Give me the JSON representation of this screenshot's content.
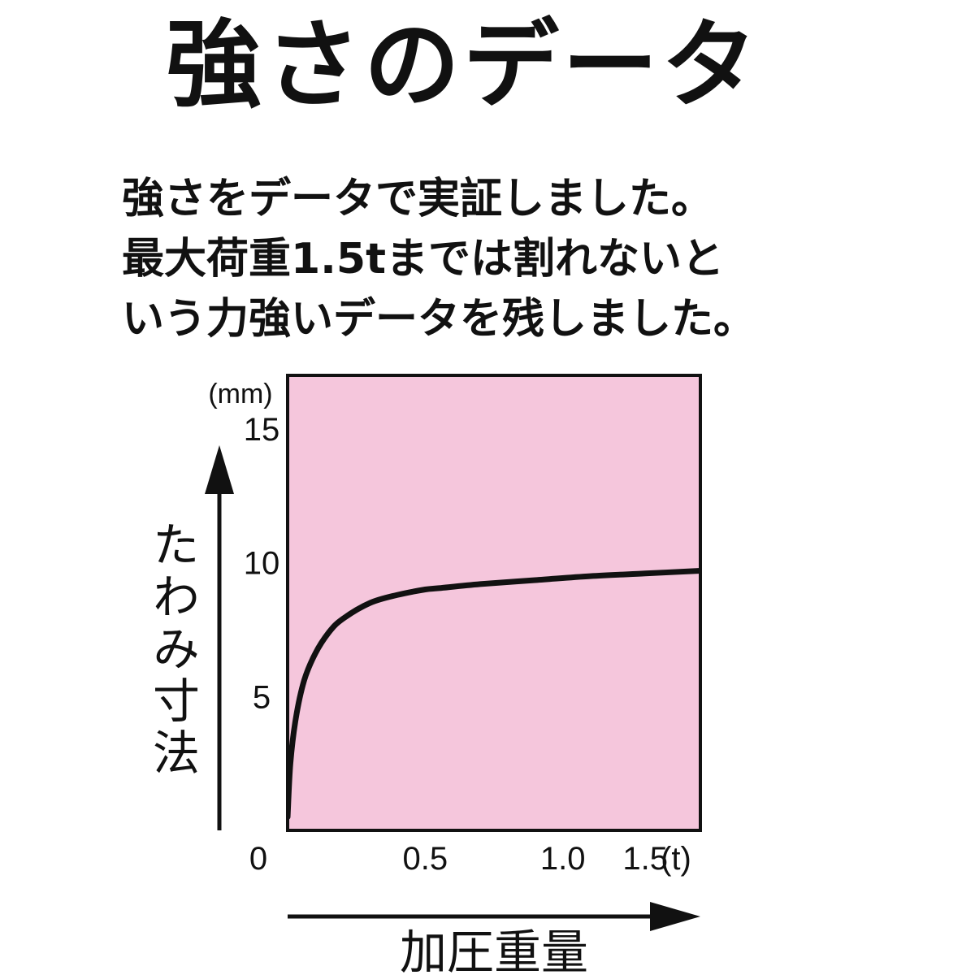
{
  "title": "強さのデータ",
  "description": [
    "強さをデータで実証しました。",
    "最大荷重1.5tまでは割れないと",
    "いう力強いデータを残しました。"
  ],
  "chart_data": {
    "type": "line",
    "title": "",
    "xlabel": "加圧重量",
    "ylabel": "たわみ寸法",
    "x_unit": "(t)",
    "y_unit": "(mm)",
    "xlim": [
      0,
      1.5
    ],
    "ylim": [
      0,
      17
    ],
    "x_ticks": [
      "0",
      "0.5",
      "1.0",
      "1.5"
    ],
    "x_tick_values": [
      0,
      0.5,
      1.0,
      1.5
    ],
    "y_ticks": [
      "5",
      "10",
      "15"
    ],
    "y_tick_values": [
      5,
      10,
      15
    ],
    "grid": false,
    "background_color": "#f5c6dc",
    "line_color": "#111111",
    "series": [
      {
        "x": [
          0.0,
          0.01,
          0.03,
          0.06,
          0.1,
          0.15,
          0.2,
          0.3,
          0.4,
          0.5,
          0.55,
          0.7,
          0.9,
          1.1,
          1.3,
          1.5
        ],
        "y": [
          0.5,
          2.5,
          4.2,
          5.6,
          6.6,
          7.4,
          7.9,
          8.5,
          8.8,
          9.0,
          9.05,
          9.2,
          9.35,
          9.5,
          9.6,
          9.7
        ]
      }
    ]
  }
}
